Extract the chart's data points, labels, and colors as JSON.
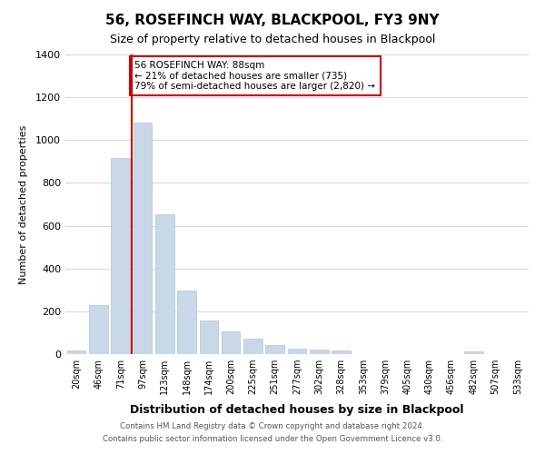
{
  "title": "56, ROSEFINCH WAY, BLACKPOOL, FY3 9NY",
  "subtitle": "Size of property relative to detached houses in Blackpool",
  "xlabel": "Distribution of detached houses by size in Blackpool",
  "ylabel": "Number of detached properties",
  "bar_color": "#c8d8e8",
  "bar_edge_color": "#b0c4d8",
  "vline_color": "#cc0000",
  "vline_x_index": 3,
  "annotation_text": "56 ROSEFINCH WAY: 88sqm\n← 21% of detached houses are smaller (735)\n79% of semi-detached houses are larger (2,820) →",
  "annotation_box_edgecolor": "#cc0000",
  "bins": [
    "20sqm",
    "46sqm",
    "71sqm",
    "97sqm",
    "123sqm",
    "148sqm",
    "174sqm",
    "200sqm",
    "225sqm",
    "251sqm",
    "277sqm",
    "302sqm",
    "328sqm",
    "353sqm",
    "379sqm",
    "405sqm",
    "430sqm",
    "456sqm",
    "482sqm",
    "507sqm",
    "533sqm"
  ],
  "values": [
    15,
    230,
    915,
    1080,
    655,
    295,
    158,
    108,
    72,
    42,
    25,
    20,
    18,
    0,
    0,
    0,
    0,
    0,
    12,
    0,
    0
  ],
  "ylim": [
    0,
    1400
  ],
  "yticks": [
    0,
    200,
    400,
    600,
    800,
    1000,
    1200,
    1400
  ],
  "footnote_line1": "Contains HM Land Registry data © Crown copyright and database right 2024.",
  "footnote_line2": "Contains public sector information licensed under the Open Government Licence v3.0.",
  "background_color": "#ffffff",
  "grid_color": "#d0dce8"
}
